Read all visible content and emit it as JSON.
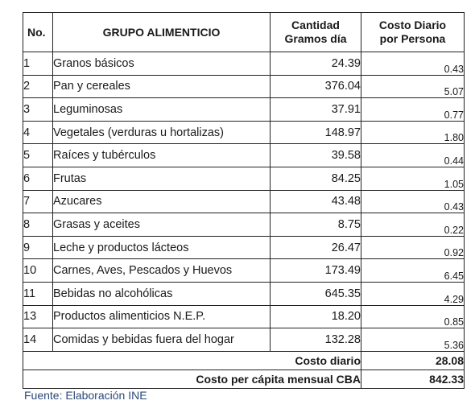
{
  "table": {
    "headers": {
      "no": "No.",
      "group": "GRUPO ALIMENTICIO",
      "grams_line1": "Cantidad",
      "grams_line2": "Gramos día",
      "cost_line1": "Costo Diario",
      "cost_line2": "por Persona"
    },
    "rows": [
      {
        "no": "1",
        "group": "Granos básicos",
        "grams": "24.39",
        "cost": "0.43"
      },
      {
        "no": "2",
        "group": "Pan y cereales",
        "grams": "376.04",
        "cost": "5.07"
      },
      {
        "no": "3",
        "group": "Leguminosas",
        "grams": "37.91",
        "cost": "0.77"
      },
      {
        "no": "4",
        "group": "Vegetales (verduras u hortalizas)",
        "grams": "148.97",
        "cost": "1.80"
      },
      {
        "no": "5",
        "group": "Raíces y tubérculos",
        "grams": "39.58",
        "cost": "0.44"
      },
      {
        "no": "6",
        "group": "Frutas",
        "grams": "84.25",
        "cost": "1.05"
      },
      {
        "no": "7",
        "group": "Azucares",
        "grams": "43.48",
        "cost": "0.43"
      },
      {
        "no": "8",
        "group": "Grasas y aceites",
        "grams": "8.75",
        "cost": "0.22"
      },
      {
        "no": "9",
        "group": "Leche y productos lácteos",
        "grams": "26.47",
        "cost": "0.92"
      },
      {
        "no": "10",
        "group": "Carnes, Aves, Pescados y Huevos",
        "grams": "173.49",
        "cost": "6.45"
      },
      {
        "no": "11",
        "group": "Bebidas no alcohólicas",
        "grams": "645.35",
        "cost": "4.29"
      },
      {
        "no": "13",
        "group": "Productos alimenticios N.E.P.",
        "grams": "18.20",
        "cost": "0.85"
      },
      {
        "no": "14",
        "group": "Comidas y bebidas fuera del hogar",
        "grams": "132.28",
        "cost": "5.36"
      }
    ],
    "totals": {
      "daily_label": "Costo diario",
      "daily_value": "28.08",
      "monthly_label": "Costo per cápita mensual CBA",
      "monthly_value": "842.33"
    }
  },
  "source": "Fuente: Elaboración INE"
}
